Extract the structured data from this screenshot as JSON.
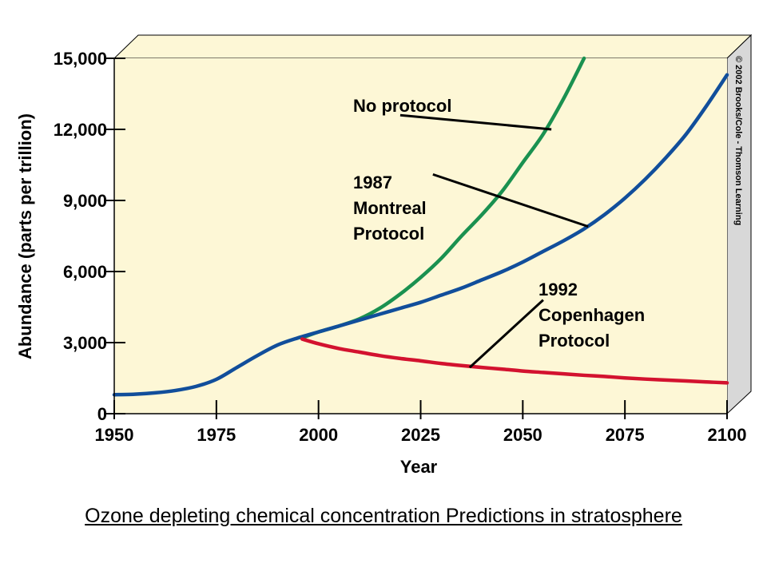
{
  "caption": "Ozone depleting chemical concentration Predictions in stratosphere",
  "copyright": "© 2002 Brooks/Cole - Thomson Learning",
  "colors": {
    "plot_background": "#fdf7d6",
    "panel_side": "#d8d8d8",
    "no_protocol": "#1a9150",
    "montreal": "#114e9b",
    "copenhagen": "#d3122f"
  },
  "chart_data": {
    "type": "line",
    "title": "",
    "xlabel": "Year",
    "ylabel": "Abundance (parts per trillion)",
    "xlim": [
      1950,
      2100
    ],
    "ylim": [
      0,
      15000
    ],
    "xticks": [
      1950,
      1975,
      2000,
      2025,
      2050,
      2075,
      2100
    ],
    "yticks": [
      0,
      3000,
      6000,
      9000,
      12000,
      15000
    ],
    "xtick_labels": [
      "1950",
      "1975",
      "2000",
      "2025",
      "2050",
      "2075",
      "2100"
    ],
    "ytick_labels": [
      "0",
      "3,000",
      "6,000",
      "9,000",
      "12,000",
      "15,000"
    ],
    "grid": false,
    "series": [
      {
        "key": "no_protocol",
        "x": [
          1996,
          2000,
          2005,
          2010,
          2015,
          2020,
          2025,
          2030,
          2035,
          2040,
          2045,
          2050,
          2055,
          2060,
          2065
        ],
        "y": [
          3200,
          3450,
          3700,
          4000,
          4450,
          5050,
          5750,
          6550,
          7500,
          8400,
          9400,
          10600,
          11800,
          13300,
          15000
        ]
      },
      {
        "key": "montreal",
        "x": [
          1950,
          1955,
          1960,
          1965,
          1970,
          1975,
          1980,
          1985,
          1990,
          1995,
          2000,
          2005,
          2010,
          2015,
          2020,
          2025,
          2030,
          2035,
          2040,
          2045,
          2050,
          2055,
          2060,
          2065,
          2070,
          2075,
          2080,
          2085,
          2090,
          2095,
          2100
        ],
        "y": [
          800,
          820,
          880,
          980,
          1150,
          1450,
          1950,
          2450,
          2900,
          3200,
          3450,
          3700,
          3950,
          4200,
          4450,
          4700,
          5000,
          5300,
          5650,
          6000,
          6400,
          6850,
          7300,
          7800,
          8400,
          9100,
          9900,
          10800,
          11800,
          13000,
          14300
        ]
      },
      {
        "key": "copenhagen",
        "x": [
          1996,
          2000,
          2005,
          2010,
          2015,
          2020,
          2025,
          2030,
          2035,
          2040,
          2045,
          2050,
          2055,
          2060,
          2065,
          2070,
          2075,
          2080,
          2085,
          2090,
          2095,
          2100
        ],
        "y": [
          3150,
          2950,
          2750,
          2600,
          2450,
          2330,
          2230,
          2120,
          2030,
          1950,
          1880,
          1800,
          1740,
          1680,
          1620,
          1570,
          1510,
          1460,
          1420,
          1380,
          1340,
          1300
        ]
      }
    ],
    "annotations": [
      {
        "series": "no_protocol",
        "lines": [
          "No protocol"
        ],
        "leader_from": [
          2020,
          12600
        ],
        "leader_to": [
          2057,
          12000
        ]
      },
      {
        "series": "montreal",
        "lines": [
          "1987",
          "Montreal",
          "Protocol"
        ],
        "leader_from": [
          2028,
          10100
        ],
        "leader_to": [
          2066,
          7900
        ]
      },
      {
        "series": "copenhagen",
        "lines": [
          "1992",
          "Copenhagen",
          "Protocol"
        ],
        "leader_from": [
          2055,
          4800
        ],
        "leader_to": [
          2037,
          1950
        ]
      }
    ]
  }
}
